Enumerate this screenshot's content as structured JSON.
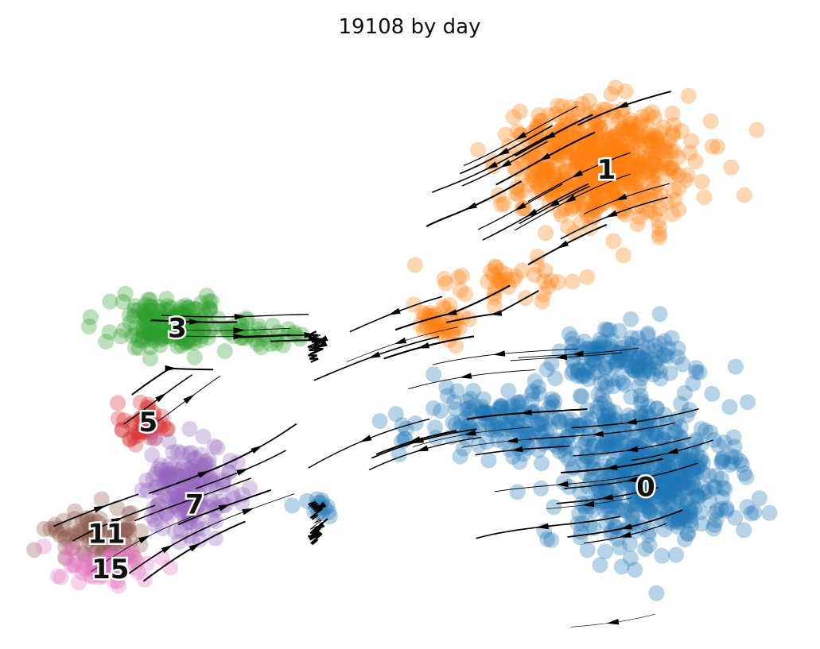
{
  "chart_data": {
    "type": "scatter",
    "title": "19108 by day",
    "xlabel": "",
    "ylabel": "",
    "grid": false,
    "axes_visible": false,
    "legend": "on data",
    "overlay": "velocity streamlines with arrowheads",
    "xlim": [
      0,
      100
    ],
    "ylim": [
      0,
      100
    ],
    "clusters": [
      {
        "label": "0",
        "color": "#1f77b4",
        "center": [
          81,
          27
        ],
        "spread": [
          10,
          11
        ],
        "n": 520
      },
      {
        "label": "0",
        "color": "#1f77b4",
        "center": [
          65,
          36
        ],
        "spread": [
          13,
          5
        ],
        "n": 200
      },
      {
        "label": "0",
        "color": "#1f77b4",
        "center": [
          76,
          47
        ],
        "spread": [
          8,
          5
        ],
        "n": 140
      },
      {
        "label": "0",
        "color": "#1f77b4",
        "center": [
          38,
          22
        ],
        "spread": [
          3,
          2
        ],
        "n": 14
      },
      {
        "label": "1",
        "color": "#ff7f0e",
        "center": [
          74,
          80
        ],
        "spread": [
          10,
          9
        ],
        "n": 560
      },
      {
        "label": "1",
        "color": "#ff7f0e",
        "center": [
          54,
          53
        ],
        "spread": [
          3,
          3
        ],
        "n": 40
      },
      {
        "label": "1",
        "color": "#ff7f0e",
        "center": [
          62,
          60
        ],
        "spread": [
          7,
          4
        ],
        "n": 40
      },
      {
        "label": "3",
        "color": "#2ca02c",
        "center": [
          20,
          53
        ],
        "spread": [
          7,
          4
        ],
        "n": 180
      },
      {
        "label": "3",
        "color": "#2ca02c",
        "center": [
          32,
          51
        ],
        "spread": [
          4,
          1.5
        ],
        "n": 28
      },
      {
        "label": "5",
        "color": "#d62728",
        "center": [
          16,
          36
        ],
        "spread": [
          3,
          3
        ],
        "n": 40
      },
      {
        "label": "7",
        "color": "#9467bd",
        "center": [
          22,
          25
        ],
        "spread": [
          6,
          7
        ],
        "n": 180
      },
      {
        "label": "11",
        "color": "#8c564b",
        "center": [
          10,
          17
        ],
        "spread": [
          6,
          4
        ],
        "n": 80
      },
      {
        "label": "15",
        "color": "#e377c2",
        "center": [
          11,
          12
        ],
        "spread": [
          6,
          3
        ],
        "n": 60
      }
    ],
    "labels": [
      {
        "text": "0",
        "x": 80,
        "y": 25
      },
      {
        "text": "1",
        "x": 75,
        "y": 79
      },
      {
        "text": "3",
        "x": 20.5,
        "y": 52
      },
      {
        "text": "5",
        "x": 16.8,
        "y": 36
      },
      {
        "text": "7",
        "x": 22.7,
        "y": 22
      },
      {
        "text": "11",
        "x": 11.5,
        "y": 17
      },
      {
        "text": "15",
        "x": 12,
        "y": 11
      }
    ]
  }
}
